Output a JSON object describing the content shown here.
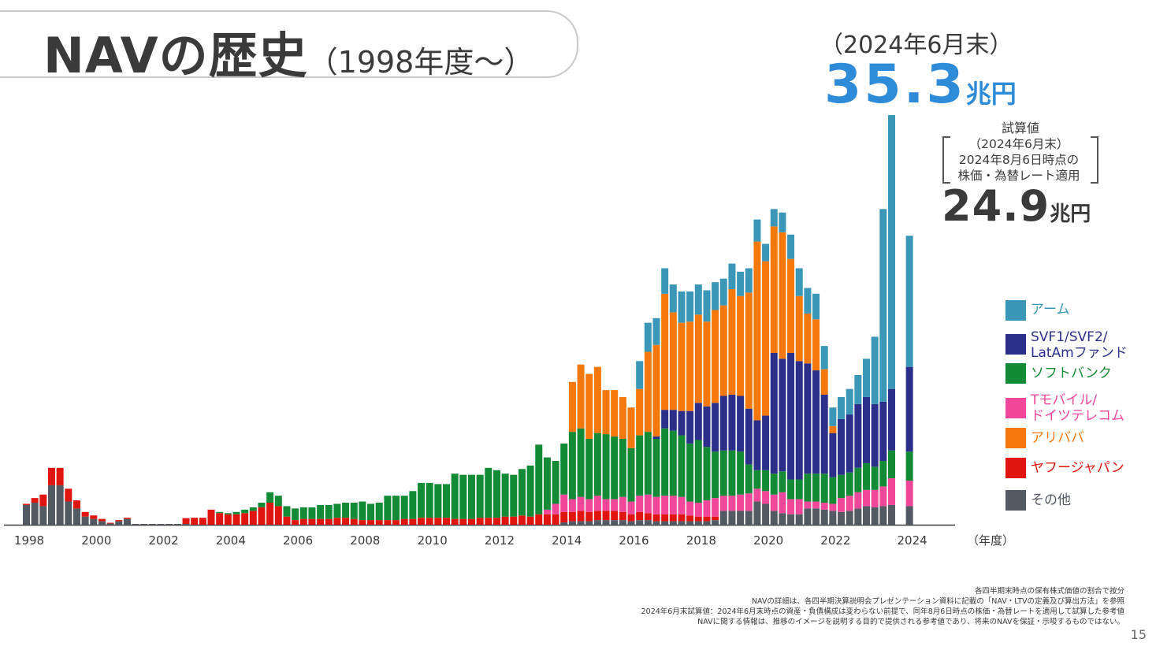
{
  "title": {
    "main": "NAVの歴史",
    "sub": "（1998年度～）"
  },
  "highlight": {
    "date": "（2024年6月末）",
    "value": "35.3",
    "unit": "兆円"
  },
  "estimate": {
    "label": "試算値",
    "lines": [
      "（2024年6月末）",
      "2024年8月6日時点の",
      "株価・為替レート適用"
    ],
    "value": "24.9",
    "unit": "兆円"
  },
  "legend": [
    {
      "label": "アーム",
      "color": "#3b97b8"
    },
    {
      "label": "SVF1/SVF2/\nLatAmファンド",
      "color": "#2b2f8a"
    },
    {
      "label": "ソフトバンク",
      "color": "#138a35"
    },
    {
      "label": "Tモバイル/\nドイツテレコム",
      "color": "#f0479a"
    },
    {
      "label": "アリババ",
      "color": "#f5780c"
    },
    {
      "label": "ヤフージャパン",
      "color": "#e0150f"
    },
    {
      "label": "その他",
      "color": "#545a63"
    }
  ],
  "notes": [
    "各四半期末時点の保有株式価値の割合で按分",
    "NAVの詳細は、各四半期決算説明会プレゼンテーション資料に記載の「NAV・LTVの定義及び算出方法」を参照",
    "2024年6月末試算値：2024年6月末時点の資産・負債構成は変わらない前提で、同年8月6日時点の株価・為替レートを適用して試算した参考値",
    "NAVに関する情報は、推移のイメージを説明する目的で提供される参考値であり、将来のNAVを保証・示唆するものではない。"
  ],
  "page_number": "15",
  "chart_data": {
    "type": "bar",
    "stacked": true,
    "unit": "兆円",
    "x_unit_label": "（年度）",
    "xtick_labels": [
      "1998",
      "2000",
      "2002",
      "2004",
      "2006",
      "2008",
      "2010",
      "2012",
      "2014",
      "2016",
      "2018",
      "2020",
      "2022",
      "2024"
    ],
    "series_order": [
      "other",
      "yahoo",
      "tmobile",
      "softbank",
      "svf",
      "alibaba",
      "arm"
    ],
    "series_names": {
      "other": "その他",
      "yahoo": "ヤフージャパン",
      "tmobile": "Tモバイル/ドイツテレコム",
      "softbank": "ソフトバンク",
      "svf": "SVF1/SVF2/LatAmファンド",
      "alibaba": "アリババ",
      "arm": "アーム"
    },
    "colors": {
      "other": "#545a63",
      "yahoo": "#e0150f",
      "tmobile": "#f0479a",
      "softbank": "#138a35",
      "svf": "#2b2f8a",
      "alibaba": "#f5780c",
      "arm": "#3b97b8"
    },
    "ylim": [
      0,
      35.3
    ],
    "bars": [
      {
        "q": "1998Q1",
        "other": 1.7,
        "yahoo": 0.1
      },
      {
        "q": "1998Q2",
        "other": 1.9,
        "yahoo": 0.4
      },
      {
        "q": "1998Q3",
        "other": 1.6,
        "yahoo": 1.0
      },
      {
        "q": "1998Q4",
        "other": 3.4,
        "yahoo": 1.5
      },
      {
        "q": "1999Q1",
        "other": 3.4,
        "yahoo": 1.5
      },
      {
        "q": "1999Q2",
        "other": 2.0,
        "yahoo": 1.1
      },
      {
        "q": "1999Q3",
        "other": 1.4,
        "yahoo": 0.7
      },
      {
        "q": "1999Q4",
        "other": 0.7,
        "yahoo": 0.4
      },
      {
        "q": "2000Q1",
        "other": 0.5,
        "yahoo": 0.3
      },
      {
        "q": "2000Q2",
        "other": 0.3,
        "yahoo": 0.2
      },
      {
        "q": "2000Q3",
        "other": 0.1,
        "yahoo": 0.05
      },
      {
        "q": "2000Q4",
        "other": 0.3,
        "yahoo": 0.1
      },
      {
        "q": "2001Q1",
        "other": 0.5,
        "yahoo": 0.1
      },
      {
        "q": "2001Q2",
        "other": 0.05
      },
      {
        "q": "2001Q3",
        "other": 0.05
      },
      {
        "q": "2001Q4",
        "other": 0.05
      },
      {
        "q": "2002Q1",
        "other": 0.05
      },
      {
        "q": "2002Q2",
        "other": 0.05
      },
      {
        "q": "2002Q3",
        "other": 0.05
      },
      {
        "q": "2002Q4",
        "other": 0.05,
        "yahoo": 0.5
      },
      {
        "q": "2003Q1",
        "yahoo": 0.6
      },
      {
        "q": "2003Q2",
        "yahoo": 0.6
      },
      {
        "q": "2003Q3",
        "yahoo": 1.3
      },
      {
        "q": "2003Q4",
        "yahoo": 1.0,
        "softbank": 0.1
      },
      {
        "q": "2004Q1",
        "yahoo": 0.9,
        "softbank": 0.1
      },
      {
        "q": "2004Q2",
        "yahoo": 0.9,
        "softbank": 0.2
      },
      {
        "q": "2004Q3",
        "yahoo": 1.0,
        "softbank": 0.3
      },
      {
        "q": "2004Q4",
        "yahoo": 1.2,
        "softbank": 0.3
      },
      {
        "q": "2005Q1",
        "yahoo": 1.5,
        "softbank": 0.4
      },
      {
        "q": "2005Q2",
        "yahoo": 1.9,
        "softbank": 0.9
      },
      {
        "q": "2005Q3",
        "yahoo": 1.6,
        "softbank": 0.9
      },
      {
        "q": "2005Q4",
        "yahoo": 0.7,
        "softbank": 0.9
      },
      {
        "q": "2006Q1",
        "yahoo": 0.4,
        "softbank": 1.0
      },
      {
        "q": "2006Q2",
        "yahoo": 0.5,
        "softbank": 1.0
      },
      {
        "q": "2006Q3",
        "yahoo": 0.5,
        "softbank": 1.0
      },
      {
        "q": "2006Q4",
        "yahoo": 0.5,
        "softbank": 1.2
      },
      {
        "q": "2007Q1",
        "yahoo": 0.5,
        "softbank": 1.2
      },
      {
        "q": "2007Q2",
        "yahoo": 0.6,
        "softbank": 1.2
      },
      {
        "q": "2007Q3",
        "yahoo": 0.6,
        "softbank": 1.3
      },
      {
        "q": "2007Q4",
        "yahoo": 0.5,
        "softbank": 1.4
      },
      {
        "q": "2008Q1",
        "yahoo": 0.4,
        "softbank": 1.6
      },
      {
        "q": "2008Q2",
        "yahoo": 0.4,
        "softbank": 1.4
      },
      {
        "q": "2008Q3",
        "yahoo": 0.4,
        "softbank": 1.5
      },
      {
        "q": "2008Q4",
        "yahoo": 0.4,
        "softbank": 2.1
      },
      {
        "q": "2009Q1",
        "yahoo": 0.4,
        "softbank": 2.1
      },
      {
        "q": "2009Q2",
        "yahoo": 0.5,
        "softbank": 2.0
      },
      {
        "q": "2009Q3",
        "yahoo": 0.5,
        "softbank": 2.4
      },
      {
        "q": "2009Q4",
        "yahoo": 0.6,
        "softbank": 3.0
      },
      {
        "q": "2010Q1",
        "yahoo": 0.6,
        "softbank": 3.0
      },
      {
        "q": "2010Q2",
        "yahoo": 0.6,
        "softbank": 2.9
      },
      {
        "q": "2010Q3",
        "yahoo": 0.6,
        "softbank": 2.9
      },
      {
        "q": "2010Q4",
        "yahoo": 0.5,
        "softbank": 3.9
      },
      {
        "q": "2011Q1",
        "yahoo": 0.5,
        "softbank": 3.8
      },
      {
        "q": "2011Q2",
        "yahoo": 0.5,
        "softbank": 3.8
      },
      {
        "q": "2011Q3",
        "yahoo": 0.6,
        "softbank": 3.7
      },
      {
        "q": "2011Q4",
        "yahoo": 0.6,
        "softbank": 4.3
      },
      {
        "q": "2012Q1",
        "yahoo": 0.6,
        "softbank": 4.1
      },
      {
        "q": "2012Q2",
        "yahoo": 0.7,
        "softbank": 3.7
      },
      {
        "q": "2012Q3",
        "yahoo": 0.7,
        "softbank": 3.6
      },
      {
        "q": "2012Q4",
        "yahoo": 0.8,
        "softbank": 4.0
      },
      {
        "q": "2013Q1",
        "yahoo": 0.7,
        "softbank": 4.4
      },
      {
        "q": "2013Q2",
        "yahoo": 0.9,
        "tmobile": 0.0,
        "softbank": 6.0
      },
      {
        "q": "2013Q3",
        "yahoo": 0.9,
        "tmobile": 0.4,
        "softbank": 4.5
      },
      {
        "q": "2013Q4",
        "yahoo": 0.9,
        "tmobile": 0.9,
        "softbank": 3.7
      },
      {
        "q": "2014Q1",
        "other": 0.2,
        "yahoo": 0.9,
        "tmobile": 1.5,
        "softbank": 4.4
      },
      {
        "q": "2014Q2",
        "other": 0.3,
        "yahoo": 0.8,
        "tmobile": 1.1,
        "softbank": 5.8,
        "alibaba": 4.3
      },
      {
        "q": "2014Q3",
        "other": 0.3,
        "yahoo": 0.9,
        "tmobile": 1.2,
        "softbank": 5.9,
        "alibaba": 5.5
      },
      {
        "q": "2014Q4",
        "other": 0.3,
        "yahoo": 0.8,
        "tmobile": 1.1,
        "softbank": 5.2,
        "alibaba": 5.6
      },
      {
        "q": "2015Q1",
        "other": 0.4,
        "yahoo": 0.8,
        "tmobile": 1.3,
        "softbank": 5.4,
        "alibaba": 5.7
      },
      {
        "q": "2015Q2",
        "other": 0.4,
        "yahoo": 0.8,
        "tmobile": 1.0,
        "softbank": 5.6,
        "alibaba": 3.8
      },
      {
        "q": "2015Q3",
        "other": 0.4,
        "yahoo": 0.8,
        "tmobile": 1.0,
        "softbank": 5.4,
        "alibaba": 4.0
      },
      {
        "q": "2015Q4",
        "other": 0.4,
        "yahoo": 0.7,
        "tmobile": 1.3,
        "softbank": 5.0,
        "alibaba": 3.6
      },
      {
        "q": "2016Q1",
        "other": 0.3,
        "yahoo": 0.6,
        "tmobile": 1.1,
        "softbank": 4.6,
        "alibaba": 3.5
      },
      {
        "q": "2016Q2",
        "other": 0.4,
        "yahoo": 0.7,
        "tmobile": 1.4,
        "softbank": 5.2,
        "arm": 2.4,
        "alibaba": 4.0
      },
      {
        "q": "2016Q3",
        "other": 0.4,
        "yahoo": 0.6,
        "tmobile": 1.6,
        "softbank": 5.4,
        "arm": 2.5,
        "alibaba": 6.9
      },
      {
        "q": "2016Q4",
        "other": 0.3,
        "yahoo": 0.6,
        "tmobile": 1.5,
        "softbank": 5.0,
        "svf": 0.2,
        "arm": 2.3,
        "alibaba": 7.9
      },
      {
        "q": "2017Q1",
        "other": 0.3,
        "yahoo": 0.6,
        "tmobile": 1.6,
        "softbank": 5.8,
        "svf": 1.6,
        "arm": 2.2,
        "alibaba": 10.0
      },
      {
        "q": "2017Q2",
        "other": 0.3,
        "yahoo": 0.6,
        "tmobile": 1.6,
        "softbank": 5.6,
        "svf": 1.8,
        "arm": 2.4,
        "alibaba": 8.4
      },
      {
        "q": "2017Q3",
        "other": 0.3,
        "yahoo": 0.6,
        "tmobile": 1.5,
        "softbank": 5.3,
        "svf": 2.1,
        "arm": 2.7,
        "alibaba": 7.6
      },
      {
        "q": "2017Q4",
        "other": 0.3,
        "yahoo": 0.5,
        "tmobile": 1.2,
        "softbank": 5.0,
        "svf": 2.8,
        "arm": 2.6,
        "alibaba": 7.7
      },
      {
        "q": "2018Q1",
        "other": 0.3,
        "yahoo": 0.4,
        "tmobile": 1.2,
        "softbank": 5.4,
        "svf": 3.2,
        "arm": 2.6,
        "alibaba": 7.6
      },
      {
        "q": "2018Q2",
        "other": 0.3,
        "yahoo": 0.4,
        "tmobile": 1.4,
        "softbank": 4.6,
        "svf": 3.5,
        "arm": 2.7,
        "alibaba": 7.3
      },
      {
        "q": "2018Q3",
        "other": 0.4,
        "yahoo": 0.3,
        "tmobile": 1.6,
        "softbank": 4.0,
        "svf": 4.2,
        "arm": 2.4,
        "alibaba": 8.0
      },
      {
        "q": "2018Q4",
        "other": 1.2,
        "tmobile": 1.3,
        "softbank": 3.9,
        "svf": 4.7,
        "arm": 2.3,
        "alibaba": 7.8
      },
      {
        "q": "2019Q1",
        "other": 1.2,
        "tmobile": 1.3,
        "softbank": 3.9,
        "svf": 4.8,
        "arm": 2.2,
        "alibaba": 9.1
      },
      {
        "q": "2019Q2",
        "other": 1.2,
        "tmobile": 1.4,
        "softbank": 3.7,
        "svf": 4.8,
        "arm": 2.1,
        "alibaba": 8.6
      },
      {
        "q": "2019Q3",
        "other": 1.2,
        "tmobile": 1.5,
        "softbank": 2.5,
        "svf": 4.8,
        "arm": 2.1,
        "alibaba": 10.0
      },
      {
        "q": "2019Q4",
        "other": 2.0,
        "tmobile": 1.1,
        "softbank": 1.6,
        "svf": 4.3,
        "arm": 1.9,
        "alibaba": 15.4
      },
      {
        "q": "2020Q1",
        "other": 1.8,
        "tmobile": 1.1,
        "softbank": 1.8,
        "svf": 4.7,
        "arm": 1.5,
        "alibaba": 13.3
      },
      {
        "q": "2020Q2",
        "other": 1.2,
        "tmobile": 1.4,
        "softbank": 1.8,
        "svf": 10.4,
        "arm": 1.5,
        "alibaba": 10.9
      },
      {
        "q": "2020Q3",
        "other": 1.0,
        "tmobile": 1.8,
        "softbank": 1.8,
        "svf": 9.7,
        "arm": 1.7,
        "alibaba": 10.9
      },
      {
        "q": "2020Q4",
        "other": 0.9,
        "tmobile": 1.3,
        "softbank": 1.7,
        "svf": 10.9,
        "arm": 2.1,
        "alibaba": 8.1
      },
      {
        "q": "2021Q1",
        "other": 0.9,
        "tmobile": 1.3,
        "softbank": 1.7,
        "svf": 10.2,
        "arm": 2.4,
        "alibaba": 5.6
      },
      {
        "q": "2021Q2",
        "other": 1.4,
        "tmobile": 0.6,
        "softbank": 2.4,
        "svf": 9.5,
        "arm": 2.2,
        "alibaba": 4.3
      },
      {
        "q": "2021Q3",
        "other": 1.4,
        "tmobile": 0.6,
        "softbank": 2.4,
        "svf": 8.9,
        "arm": 2.2,
        "alibaba": 4.4
      },
      {
        "q": "2021Q4",
        "other": 1.3,
        "tmobile": 0.6,
        "softbank": 2.5,
        "svf": 6.8,
        "arm": 2.0,
        "alibaba": 2.2
      },
      {
        "q": "2022Q1",
        "other": 1.2,
        "tmobile": 0.6,
        "softbank": 2.3,
        "svf": 3.8,
        "arm": 1.6,
        "alibaba": 0.6
      },
      {
        "q": "2022Q2",
        "other": 1.1,
        "tmobile": 1.2,
        "softbank": 2.0,
        "svf": 4.8,
        "arm": 1.9
      },
      {
        "q": "2022Q3",
        "other": 1.2,
        "tmobile": 1.3,
        "softbank": 2.0,
        "svf": 5.0,
        "arm": 2.2
      },
      {
        "q": "2022Q4",
        "other": 1.4,
        "tmobile": 1.4,
        "softbank": 2.1,
        "svf": 5.5,
        "arm": 2.5
      },
      {
        "q": "2023Q1",
        "other": 1.6,
        "tmobile": 1.4,
        "softbank": 2.3,
        "svf": 5.7,
        "arm": 3.3
      },
      {
        "q": "2023Q2",
        "other": 1.5,
        "tmobile": 1.5,
        "softbank": 2.0,
        "svf": 5.4,
        "arm": 5.8
      },
      {
        "q": "2023Q3",
        "other": 1.6,
        "tmobile": 1.7,
        "softbank": 2.2,
        "svf": 5.1,
        "arm": 16.6
      },
      {
        "q": "2023Q4",
        "other": 1.7,
        "tmobile": 2.3,
        "softbank": 2.4,
        "svf": 5.3,
        "arm": 23.6
      },
      {
        "q": "2024Q1 (試算値)",
        "other": 1.6,
        "tmobile": 2.2,
        "softbank": 2.5,
        "svf": 7.3,
        "arm": 11.3
      }
    ]
  }
}
